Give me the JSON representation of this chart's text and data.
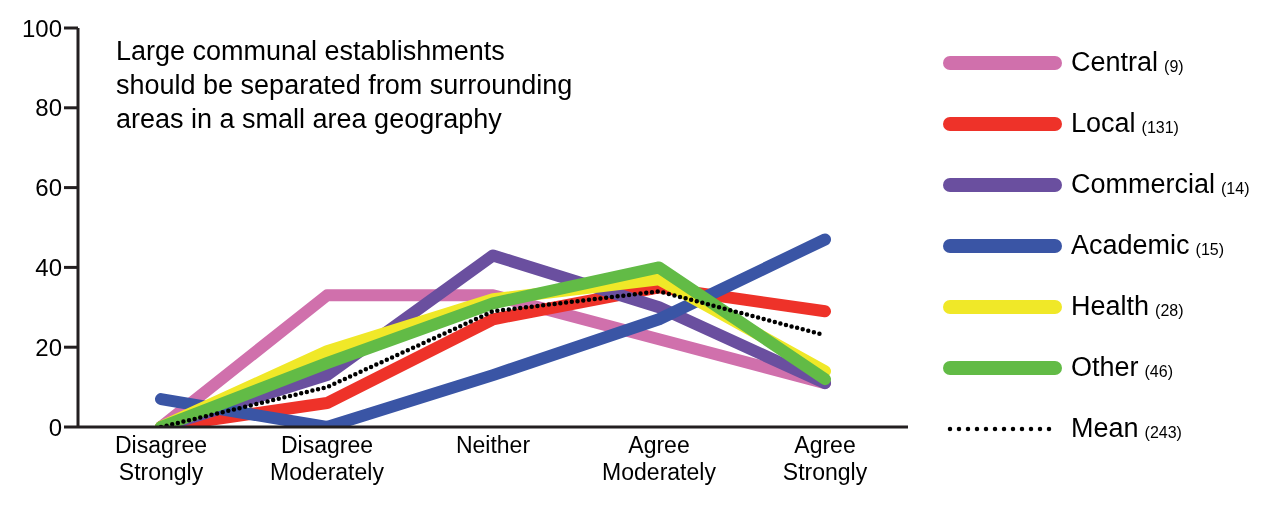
{
  "chart_data": {
    "type": "line",
    "title": "Large communal establishments should be separated from surrounding areas in a small area geography",
    "categories": [
      "Disagree Strongly",
      "Disagree Moderately",
      "Neither",
      "Agree Moderately",
      "Agree Strongly"
    ],
    "ylim": [
      0,
      100
    ],
    "yticks": [
      0,
      20,
      40,
      60,
      80,
      100
    ],
    "grid": false,
    "legend": "right",
    "marker": "none",
    "series": [
      {
        "name": "Central (9)",
        "color": "#d070ac",
        "values": [
          0,
          33,
          33,
          22,
          11
        ]
      },
      {
        "name": "Local (131)",
        "color": "#ee3229",
        "values": [
          0,
          6,
          27,
          35,
          29
        ]
      },
      {
        "name": "Commercial (14)",
        "color": "#6a4f9f",
        "values": [
          0,
          13,
          43,
          30,
          11
        ]
      },
      {
        "name": "Academic (15)",
        "color": "#3a55a5",
        "values": [
          7,
          0,
          13,
          27,
          47
        ]
      },
      {
        "name": "Health (28)",
        "color": "#f0e828",
        "values": [
          0,
          19,
          32,
          37,
          14
        ]
      },
      {
        "name": "Other (46)",
        "color": "#62bb46",
        "values": [
          0,
          16,
          31,
          40,
          12
        ]
      },
      {
        "name": "Mean (243)",
        "color": "#000000",
        "line_style": "dotted",
        "values": [
          0,
          10,
          29,
          34,
          23
        ]
      }
    ]
  }
}
